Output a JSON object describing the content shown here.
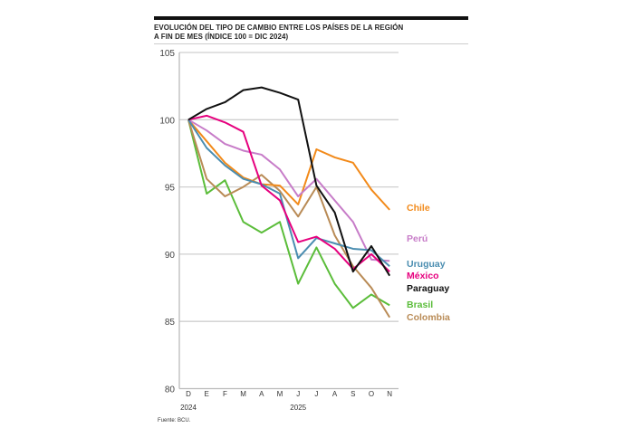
{
  "title_line1": "EVOLUCIÓN DEL TIPO DE CAMBIO ENTRE LOS PAÍSES DE LA REGIÓN",
  "title_line2": "A FIN DE MES (ÍNDICE 100 = DIC 2024)",
  "source": "Fuente: BCU.",
  "chart_data": {
    "type": "line",
    "title": "EVOLUCIÓN DEL TIPO DE CAMBIO ENTRE LOS PAÍSES DE LA REGIÓN A FIN DE MES (ÍNDICE 100 = DIC 2024)",
    "categories": [
      "D",
      "E",
      "F",
      "M",
      "A",
      "M",
      "J",
      "J",
      "A",
      "S",
      "O",
      "N"
    ],
    "year_labels": [
      {
        "label": "2024",
        "at": 0
      },
      {
        "label": "2025",
        "at": 6
      }
    ],
    "ylim": [
      80,
      105
    ],
    "yticks": [
      80,
      85,
      90,
      95,
      100,
      105
    ],
    "grid": "horizontal",
    "legend": "right, inline labels",
    "series": [
      {
        "name": "Chile",
        "color": "#f28a1a",
        "values": [
          100,
          98.4,
          96.8,
          95.7,
          95.2,
          95.1,
          93.7,
          97.8,
          97.2,
          96.8,
          94.8,
          93.3
        ]
      },
      {
        "name": "Perú",
        "color": "#c77cc8",
        "values": [
          100,
          99.2,
          98.2,
          97.7,
          97.4,
          96.3,
          94.3,
          95.6,
          94.0,
          92.4,
          89.6,
          89.5
        ]
      },
      {
        "name": "Uruguay",
        "color": "#4a8db0",
        "values": [
          100,
          97.9,
          96.6,
          95.6,
          95.2,
          94.5,
          89.7,
          91.2,
          90.8,
          90.4,
          90.3,
          89.1
        ]
      },
      {
        "name": "México",
        "color": "#e6007e",
        "values": [
          100,
          100.3,
          99.8,
          99.1,
          95.1,
          94.0,
          90.9,
          91.3,
          90.4,
          88.9,
          90.0,
          88.7
        ]
      },
      {
        "name": "Paraguay",
        "color": "#111111",
        "values": [
          100,
          100.8,
          101.3,
          102.2,
          102.4,
          102.0,
          101.5,
          95.1,
          93.1,
          88.7,
          90.6,
          88.4
        ]
      },
      {
        "name": "Brasil",
        "color": "#5bbd3a",
        "values": [
          100,
          94.5,
          95.5,
          92.4,
          91.6,
          92.4,
          87.8,
          90.5,
          87.8,
          86.0,
          87.0,
          86.2
        ]
      },
      {
        "name": "Colombia",
        "color": "#b98b56",
        "values": [
          100,
          95.6,
          94.3,
          95.0,
          95.9,
          94.7,
          92.8,
          95.0,
          91.4,
          89.1,
          87.5,
          85.3
        ]
      }
    ]
  }
}
